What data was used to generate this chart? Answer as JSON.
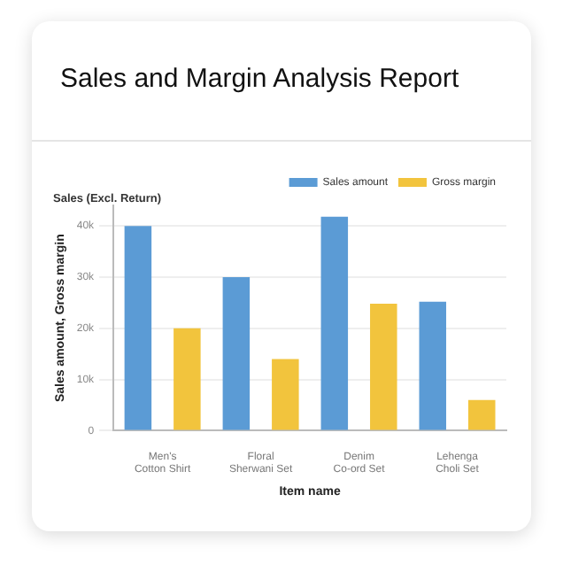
{
  "chart_data": {
    "type": "bar",
    "title": "Sales and Margin Analysis Report",
    "subtitle": "Sales (Excl. Return)",
    "xlabel": "Item name",
    "ylabel": "Sales amount, Gross margin",
    "categories": [
      [
        "Men's",
        "Cotton Shirt"
      ],
      [
        "Floral",
        "Sherwani Set"
      ],
      [
        "Denim",
        "Co-ord Set"
      ],
      [
        "Lehenga",
        "Choli Set"
      ]
    ],
    "series": [
      {
        "name": "Sales amount",
        "color": "#5b9bd5",
        "values": [
          40000,
          30000,
          41800,
          25200
        ]
      },
      {
        "name": "Gross margin",
        "color": "#f2c43d",
        "values": [
          20000,
          14000,
          24800,
          6000
        ]
      }
    ],
    "ylim": [
      0,
      44000
    ],
    "yticks": [
      0,
      {
        "value": 10000,
        "label": "10k"
      },
      {
        "value": 20000,
        "label": "20k"
      },
      {
        "value": 30000,
        "label": "30k"
      },
      {
        "value": 40000,
        "label": "40k"
      }
    ],
    "grid": "y",
    "legend": "top right"
  }
}
